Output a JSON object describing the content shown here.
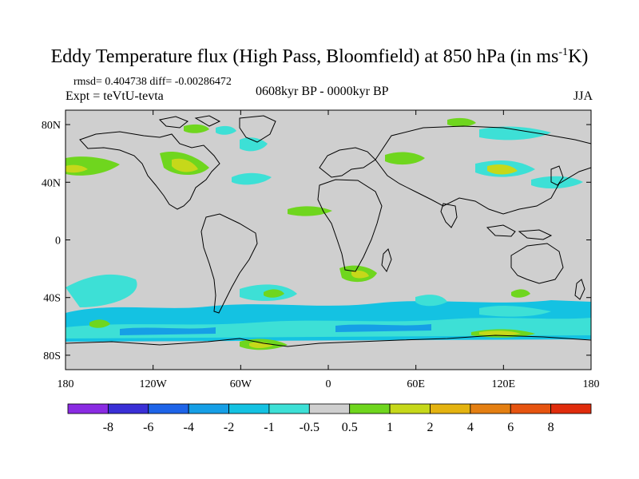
{
  "title_main": "Eddy Temperature flux (High Pass, Bloomfield) at 850 hPa (in ms",
  "title_sup": "-1",
  "title_end": "K)",
  "stats": "rmsd= 0.404738 diff= -0.00286472",
  "expt": "Expt = teVtU-tevta",
  "period": "0608kyr BP - 0000kyr BP",
  "season": "JJA",
  "lat_labels": [
    "80N",
    "40N",
    "0",
    "40S",
    "80S"
  ],
  "lon_labels": [
    "180",
    "120W",
    "60W",
    "0",
    "60E",
    "120E",
    "180"
  ],
  "colorbar": {
    "labels": [
      "-8",
      "-6",
      "-4",
      "-2",
      "-1",
      "-0.5",
      "0.5",
      "1",
      "2",
      "4",
      "6",
      "8"
    ],
    "colors": [
      "#8a2be2",
      "#3a2fd6",
      "#1e64e8",
      "#169fe6",
      "#14c2e2",
      "#3de0d6",
      "#cfcfcf",
      "#6fd61e",
      "#c6d81a",
      "#e4b310",
      "#e47f12",
      "#e65410",
      "#e02c0c"
    ]
  },
  "colors": {
    "background": "#cfcfcf",
    "coast": "#000000"
  },
  "map": {
    "lat_range": [
      -90,
      90
    ],
    "lon_range": [
      -180,
      180
    ],
    "projection": "cylindrical-equidistant"
  }
}
